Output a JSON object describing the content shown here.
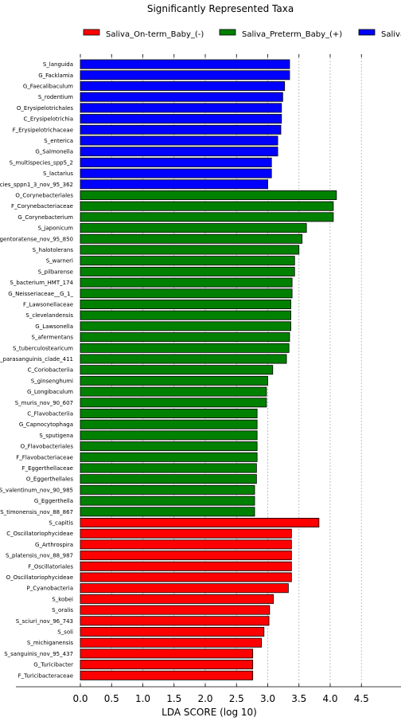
{
  "chart_data": {
    "type": "bar",
    "orientation": "horizontal",
    "title": "Significantly Represented Taxa",
    "xlabel": "LDA SCORE (log 10)",
    "ylabel": "",
    "xlim": [
      0,
      4.5
    ],
    "xticks": [
      "0.0",
      "0.5",
      "1.0",
      "1.5",
      "2.0",
      "2.5",
      "3.0",
      "3.5",
      "4.0",
      "4.5"
    ],
    "grid": "vertical dotted lines at x ticks",
    "legend_position": "top",
    "legend": [
      {
        "name": "Saliva_On-term_Baby_(-)",
        "color": "#ff0000"
      },
      {
        "name": "Saliva_Preterm_Baby_(+)",
        "color": "#008000"
      },
      {
        "name": "Saliva",
        "color": "#0000ff"
      }
    ],
    "bars": [
      {
        "label": "S_languida",
        "value": 3.35,
        "group": 2
      },
      {
        "label": "G_Facklamia",
        "value": 3.35,
        "group": 2
      },
      {
        "label": "G_Faecalibaculum",
        "value": 3.27,
        "group": 2
      },
      {
        "label": "S_rodentium",
        "value": 3.24,
        "group": 2
      },
      {
        "label": "O_Erysipelotrichales",
        "value": 3.22,
        "group": 2
      },
      {
        "label": "C_Erysipelotrichia",
        "value": 3.22,
        "group": 2
      },
      {
        "label": "F_Erysipelotrichaceae",
        "value": 3.21,
        "group": 2
      },
      {
        "label": "S_enterica",
        "value": 3.16,
        "group": 2
      },
      {
        "label": "G_Salmonella",
        "value": 3.16,
        "group": 2
      },
      {
        "label": "S_multispecies_spp5_2",
        "value": 3.06,
        "group": 2
      },
      {
        "label": "S_lactarius",
        "value": 3.06,
        "group": 2
      },
      {
        "label": "cies_sppn1_3_nov_95_362",
        "value": 3.0,
        "group": 2
      },
      {
        "label": "O_Corynebacteriales",
        "value": 4.1,
        "group": 1
      },
      {
        "label": "F_Corynebacteriaceae",
        "value": 4.05,
        "group": 1
      },
      {
        "label": "G_Corynebacterium",
        "value": 4.05,
        "group": 1
      },
      {
        "label": "S_japonicum",
        "value": 3.62,
        "group": 1
      },
      {
        "label": "gentoratense_nov_95_850",
        "value": 3.55,
        "group": 1
      },
      {
        "label": "S_halotolerans",
        "value": 3.5,
        "group": 1
      },
      {
        "label": "S_warneri",
        "value": 3.43,
        "group": 1
      },
      {
        "label": "S_pilbarense",
        "value": 3.43,
        "group": 1
      },
      {
        "label": "S_bacterium_HMT_174",
        "value": 3.39,
        "group": 1
      },
      {
        "label": "G_Neisseriaceae__G_1_",
        "value": 3.39,
        "group": 1
      },
      {
        "label": "F_Lawsonellaceae",
        "value": 3.37,
        "group": 1
      },
      {
        "label": "S_clevelandensis",
        "value": 3.37,
        "group": 1
      },
      {
        "label": "G_Lawsonella",
        "value": 3.37,
        "group": 1
      },
      {
        "label": "S_afermentans",
        "value": 3.35,
        "group": 1
      },
      {
        "label": "S_tuberculostearicum",
        "value": 3.34,
        "group": 1
      },
      {
        "label": "_parasanguinis_clade_411",
        "value": 3.3,
        "group": 1
      },
      {
        "label": "C_Coriobacteriia",
        "value": 3.08,
        "group": 1
      },
      {
        "label": "S_ginsenghumi",
        "value": 3.0,
        "group": 1
      },
      {
        "label": "G_Longibaculum",
        "value": 2.98,
        "group": 1
      },
      {
        "label": "S_muris_nov_90_607",
        "value": 2.98,
        "group": 1
      },
      {
        "label": "C_Flavobacteriia",
        "value": 2.83,
        "group": 1
      },
      {
        "label": "G_Capnocytophaga",
        "value": 2.83,
        "group": 1
      },
      {
        "label": "S_sputigena",
        "value": 2.83,
        "group": 1
      },
      {
        "label": "O_Flavobacteriales",
        "value": 2.83,
        "group": 1
      },
      {
        "label": "F_Flavobacteriaceae",
        "value": 2.83,
        "group": 1
      },
      {
        "label": "F_Eggerthellaceae",
        "value": 2.82,
        "group": 1
      },
      {
        "label": "O_Eggerthellales",
        "value": 2.82,
        "group": 1
      },
      {
        "label": "S_valentinum_nov_90_985",
        "value": 2.79,
        "group": 1
      },
      {
        "label": "G_Eggerthella",
        "value": 2.79,
        "group": 1
      },
      {
        "label": "S_timonensis_nov_88_867",
        "value": 2.79,
        "group": 1
      },
      {
        "label": "S_capitis",
        "value": 3.82,
        "group": 0
      },
      {
        "label": "C_Oscillatoriophycideae",
        "value": 3.38,
        "group": 0
      },
      {
        "label": "G_Arthrospira",
        "value": 3.38,
        "group": 0
      },
      {
        "label": "S_platensis_nov_88_987",
        "value": 3.38,
        "group": 0
      },
      {
        "label": "F_Oscillatoriales",
        "value": 3.38,
        "group": 0
      },
      {
        "label": "O_Oscillatoriophycideae",
        "value": 3.38,
        "group": 0
      },
      {
        "label": "P_Cyanobacteria",
        "value": 3.33,
        "group": 0
      },
      {
        "label": "S_kobei",
        "value": 3.09,
        "group": 0
      },
      {
        "label": "S_oralis",
        "value": 3.03,
        "group": 0
      },
      {
        "label": "S_sciuri_nov_96_743",
        "value": 3.02,
        "group": 0
      },
      {
        "label": "S_soli",
        "value": 2.94,
        "group": 0
      },
      {
        "label": "S_michiganensis",
        "value": 2.9,
        "group": 0
      },
      {
        "label": "S_sanguinis_nov_95_437",
        "value": 2.76,
        "group": 0
      },
      {
        "label": "G_Turicibacter",
        "value": 2.76,
        "group": 0
      },
      {
        "label": "F_Turicibacteraceae",
        "value": 2.76,
        "group": 0
      }
    ]
  }
}
